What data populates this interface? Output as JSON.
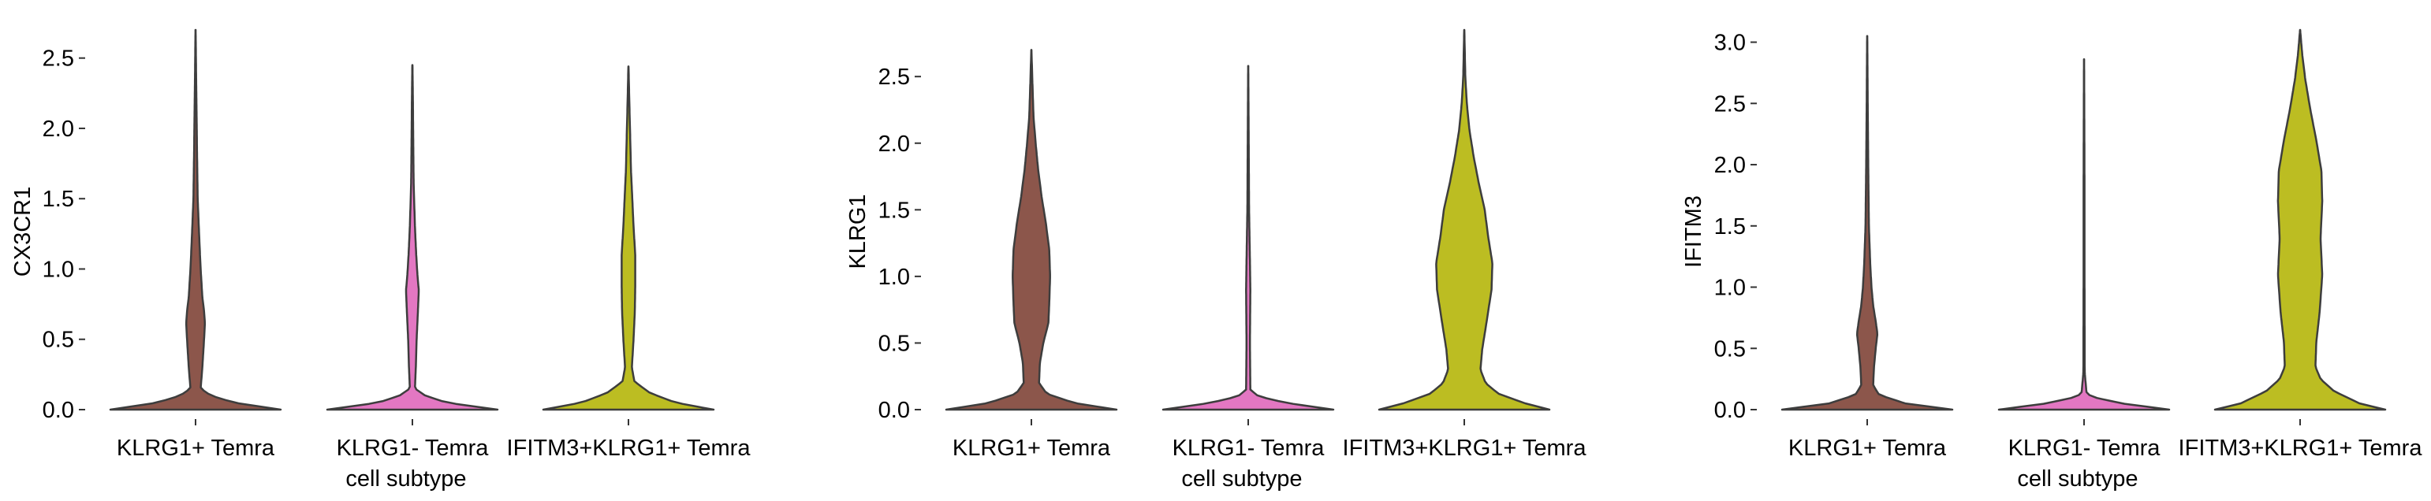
{
  "chart_data": [
    {
      "type": "violin",
      "ylabel": "CX3CR1",
      "xlabel": "cell subtype",
      "categories": [
        "KLRG1+ Temra",
        "KLRG1- Temra",
        "IFITM3+KLRG1+ Temra"
      ],
      "colors": [
        "#8c564b",
        "#e377c2",
        "#bcbd22"
      ],
      "ylim": [
        0,
        2.7
      ],
      "yticks": [
        0.0,
        0.5,
        1.0,
        1.5,
        2.0,
        2.5
      ],
      "ytick_labels": [
        "0.0",
        "0.5",
        "1.0",
        "1.5",
        "2.0",
        "2.5"
      ],
      "max": [
        2.7,
        2.45,
        2.44
      ],
      "density_profiles": [
        [
          [
            0,
            1.0
          ],
          [
            0.05,
            0.45
          ],
          [
            0.1,
            0.18
          ],
          [
            0.15,
            0.06
          ],
          [
            0.3,
            0.08
          ],
          [
            0.5,
            0.1
          ],
          [
            0.62,
            0.11
          ],
          [
            0.7,
            0.1
          ],
          [
            0.8,
            0.08
          ],
          [
            1.0,
            0.06
          ],
          [
            1.2,
            0.045
          ],
          [
            1.5,
            0.025
          ],
          [
            1.8,
            0.018
          ],
          [
            2.1,
            0.012
          ],
          [
            2.4,
            0.006
          ],
          [
            2.7,
            0.001
          ]
        ],
        [
          [
            0,
            1.0
          ],
          [
            0.05,
            0.4
          ],
          [
            0.1,
            0.15
          ],
          [
            0.15,
            0.03
          ],
          [
            0.3,
            0.04
          ],
          [
            0.5,
            0.05
          ],
          [
            0.7,
            0.065
          ],
          [
            0.85,
            0.075
          ],
          [
            0.95,
            0.06
          ],
          [
            1.1,
            0.045
          ],
          [
            1.3,
            0.03
          ],
          [
            1.6,
            0.015
          ],
          [
            1.9,
            0.01
          ],
          [
            2.2,
            0.006
          ],
          [
            2.45,
            0.001
          ]
        ],
        [
          [
            0,
            1.0
          ],
          [
            0.05,
            0.55
          ],
          [
            0.12,
            0.25
          ],
          [
            0.2,
            0.07
          ],
          [
            0.3,
            0.04
          ],
          [
            0.5,
            0.06
          ],
          [
            0.7,
            0.075
          ],
          [
            0.9,
            0.08
          ],
          [
            1.1,
            0.08
          ],
          [
            1.3,
            0.06
          ],
          [
            1.5,
            0.045
          ],
          [
            1.7,
            0.03
          ],
          [
            2.0,
            0.018
          ],
          [
            2.2,
            0.01
          ],
          [
            2.44,
            0.001
          ]
        ]
      ]
    },
    {
      "type": "violin",
      "ylabel": "KLRG1",
      "xlabel": "cell subtype",
      "categories": [
        "KLRG1+ Temra",
        "KLRG1- Temra",
        "IFITM3+KLRG1+ Temra"
      ],
      "colors": [
        "#8c564b",
        "#e377c2",
        "#bcbd22"
      ],
      "ylim": [
        0,
        2.85
      ],
      "yticks": [
        0.0,
        0.5,
        1.0,
        1.5,
        2.0,
        2.5
      ],
      "ytick_labels": [
        "0.0",
        "0.5",
        "1.0",
        "1.5",
        "2.0",
        "2.5"
      ],
      "max": [
        2.7,
        2.58,
        2.85
      ],
      "density_profiles": [
        [
          [
            0,
            1.0
          ],
          [
            0.05,
            0.5
          ],
          [
            0.12,
            0.18
          ],
          [
            0.2,
            0.09
          ],
          [
            0.35,
            0.1
          ],
          [
            0.5,
            0.14
          ],
          [
            0.65,
            0.2
          ],
          [
            0.8,
            0.21
          ],
          [
            1.0,
            0.22
          ],
          [
            1.2,
            0.21
          ],
          [
            1.4,
            0.17
          ],
          [
            1.6,
            0.12
          ],
          [
            1.8,
            0.08
          ],
          [
            2.0,
            0.05
          ],
          [
            2.2,
            0.025
          ],
          [
            2.5,
            0.01
          ],
          [
            2.7,
            0.001
          ]
        ],
        [
          [
            0,
            1.0
          ],
          [
            0.05,
            0.45
          ],
          [
            0.1,
            0.12
          ],
          [
            0.15,
            0.025
          ],
          [
            0.5,
            0.02
          ],
          [
            0.9,
            0.025
          ],
          [
            1.2,
            0.018
          ],
          [
            1.5,
            0.01
          ],
          [
            2.0,
            0.006
          ],
          [
            2.58,
            0.001
          ]
        ],
        [
          [
            0,
            1.0
          ],
          [
            0.05,
            0.7
          ],
          [
            0.12,
            0.4
          ],
          [
            0.2,
            0.25
          ],
          [
            0.3,
            0.19
          ],
          [
            0.45,
            0.21
          ],
          [
            0.65,
            0.26
          ],
          [
            0.9,
            0.32
          ],
          [
            1.1,
            0.33
          ],
          [
            1.3,
            0.28
          ],
          [
            1.5,
            0.24
          ],
          [
            1.7,
            0.17
          ],
          [
            1.9,
            0.11
          ],
          [
            2.1,
            0.06
          ],
          [
            2.3,
            0.03
          ],
          [
            2.5,
            0.012
          ],
          [
            2.85,
            0.001
          ]
        ]
      ]
    },
    {
      "type": "violin",
      "ylabel": "IFITM3",
      "xlabel": "cell subtype",
      "categories": [
        "KLRG1+ Temra",
        "KLRG1- Temra",
        "IFITM3+KLRG1+ Temra"
      ],
      "colors": [
        "#8c564b",
        "#e377c2",
        "#bcbd22"
      ],
      "ylim": [
        0,
        3.1
      ],
      "yticks": [
        0.0,
        0.5,
        1.0,
        1.5,
        2.0,
        2.5,
        3.0
      ],
      "ytick_labels": [
        "0.0",
        "0.5",
        "1.0",
        "1.5",
        "2.0",
        "2.5",
        "3.0"
      ],
      "max": [
        3.05,
        2.86,
        3.1
      ],
      "density_profiles": [
        [
          [
            0,
            1.0
          ],
          [
            0.05,
            0.45
          ],
          [
            0.12,
            0.14
          ],
          [
            0.2,
            0.07
          ],
          [
            0.35,
            0.08
          ],
          [
            0.5,
            0.1
          ],
          [
            0.62,
            0.12
          ],
          [
            0.72,
            0.1
          ],
          [
            0.85,
            0.07
          ],
          [
            1.0,
            0.05
          ],
          [
            1.2,
            0.035
          ],
          [
            1.5,
            0.02
          ],
          [
            2.0,
            0.012
          ],
          [
            2.5,
            0.006
          ],
          [
            3.05,
            0.001
          ]
        ],
        [
          [
            0,
            1.0
          ],
          [
            0.05,
            0.45
          ],
          [
            0.1,
            0.12
          ],
          [
            0.13,
            0.03
          ],
          [
            0.3,
            0.008
          ],
          [
            1.0,
            0.006
          ],
          [
            2.0,
            0.005
          ],
          [
            2.86,
            0.001
          ]
        ],
        [
          [
            0,
            1.0
          ],
          [
            0.05,
            0.7
          ],
          [
            0.15,
            0.4
          ],
          [
            0.25,
            0.24
          ],
          [
            0.35,
            0.18
          ],
          [
            0.55,
            0.19
          ],
          [
            0.8,
            0.23
          ],
          [
            1.1,
            0.26
          ],
          [
            1.4,
            0.24
          ],
          [
            1.7,
            0.26
          ],
          [
            1.95,
            0.25
          ],
          [
            2.2,
            0.19
          ],
          [
            2.45,
            0.12
          ],
          [
            2.7,
            0.06
          ],
          [
            2.9,
            0.025
          ],
          [
            3.1,
            0.001
          ]
        ]
      ]
    }
  ]
}
